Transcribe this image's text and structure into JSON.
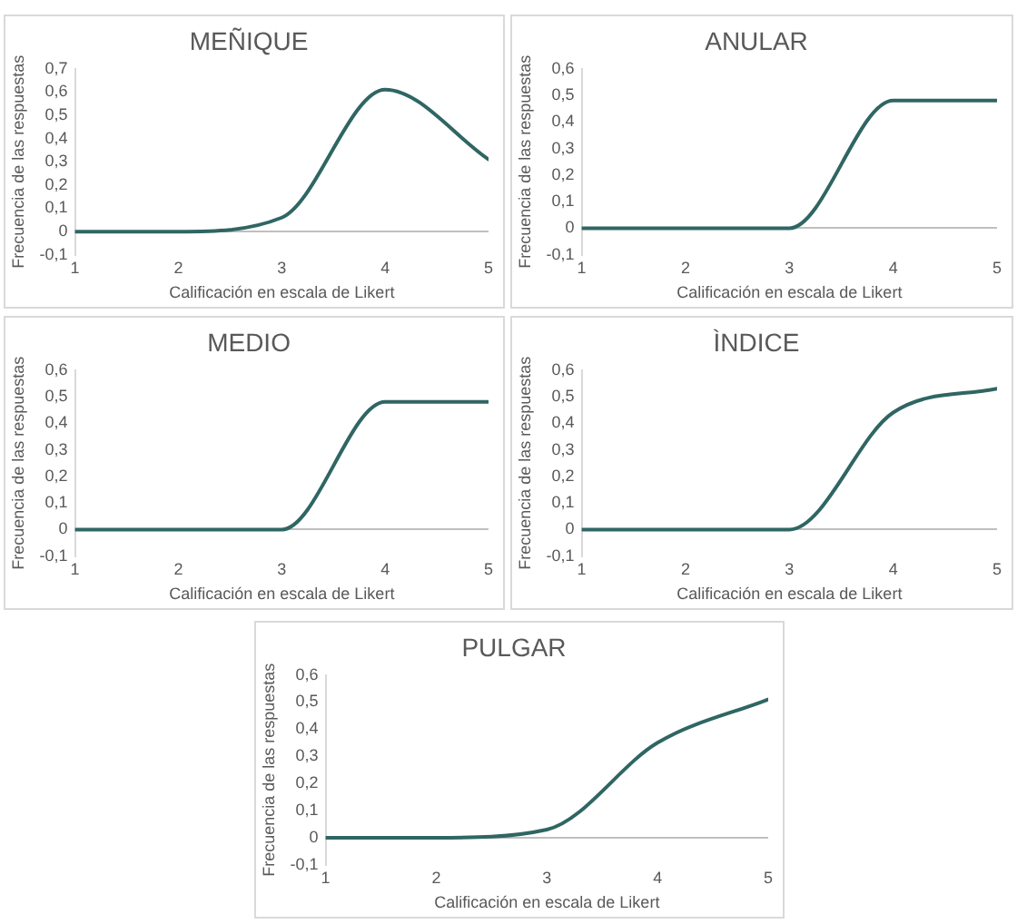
{
  "chart_data": [
    {
      "type": "line",
      "title": "MEÑIQUE",
      "xlabel": "Calificación en escala de Likert",
      "ylabel": "Frecuencia de las respuestas",
      "x": [
        1,
        2,
        3,
        4,
        5
      ],
      "xlim": [
        1,
        5
      ],
      "xticks": [
        1,
        2,
        3,
        4,
        5
      ],
      "ylim": [
        -0.1,
        0.7
      ],
      "yticks": [
        {
          "value": -0.1,
          "label": "-0,1"
        },
        {
          "value": 0,
          "label": "0"
        },
        {
          "value": 0.1,
          "label": "0,1"
        },
        {
          "value": 0.2,
          "label": "0,2"
        },
        {
          "value": 0.3,
          "label": "0,3"
        },
        {
          "value": 0.4,
          "label": "0,4"
        },
        {
          "value": 0.5,
          "label": "0,5"
        },
        {
          "value": 0.6,
          "label": "0,6"
        },
        {
          "value": 0.7,
          "label": "0,7"
        }
      ],
      "grid": false,
      "legend": false,
      "marker": "none",
      "series": [
        {
          "color": "#2f6663",
          "values": [
            0,
            0,
            0.06,
            0.61,
            0.31
          ]
        }
      ]
    },
    {
      "type": "line",
      "title": "ANULAR",
      "xlabel": "Calificación en escala de Likert",
      "ylabel": "Frecuencia de las respuestas",
      "x": [
        1,
        2,
        3,
        4,
        5
      ],
      "xlim": [
        1,
        5
      ],
      "xticks": [
        1,
        2,
        3,
        4,
        5
      ],
      "ylim": [
        -0.1,
        0.6
      ],
      "yticks": [
        {
          "value": -0.1,
          "label": "-0,1"
        },
        {
          "value": 0,
          "label": "0"
        },
        {
          "value": 0.1,
          "label": "0,1"
        },
        {
          "value": 0.2,
          "label": "0,2"
        },
        {
          "value": 0.3,
          "label": "0,3"
        },
        {
          "value": 0.4,
          "label": "0,4"
        },
        {
          "value": 0.5,
          "label": "0,5"
        },
        {
          "value": 0.6,
          "label": "0,6"
        }
      ],
      "grid": false,
      "legend": false,
      "marker": "none",
      "series": [
        {
          "color": "#2f6663",
          "values": [
            0,
            0,
            0,
            0.48,
            0.48
          ]
        }
      ]
    },
    {
      "type": "line",
      "title": "MEDIO",
      "xlabel": "Calificación en escala de Likert",
      "ylabel": "Frecuencia de las respuestas",
      "x": [
        1,
        2,
        3,
        4,
        5
      ],
      "xlim": [
        1,
        5
      ],
      "xticks": [
        1,
        2,
        3,
        4,
        5
      ],
      "ylim": [
        -0.1,
        0.6
      ],
      "yticks": [
        {
          "value": -0.1,
          "label": "-0,1"
        },
        {
          "value": 0,
          "label": "0"
        },
        {
          "value": 0.1,
          "label": "0,1"
        },
        {
          "value": 0.2,
          "label": "0,2"
        },
        {
          "value": 0.3,
          "label": "0,3"
        },
        {
          "value": 0.4,
          "label": "0,4"
        },
        {
          "value": 0.5,
          "label": "0,5"
        },
        {
          "value": 0.6,
          "label": "0,6"
        }
      ],
      "grid": false,
      "legend": false,
      "marker": "none",
      "series": [
        {
          "color": "#2f6663",
          "values": [
            0,
            0,
            0,
            0.48,
            0.48
          ]
        }
      ]
    },
    {
      "type": "line",
      "title": "ÌNDICE",
      "xlabel": "Calificación en escala de Likert",
      "ylabel": "Frecuencia de las respuestas",
      "x": [
        1,
        2,
        3,
        4,
        5
      ],
      "xlim": [
        1,
        5
      ],
      "xticks": [
        1,
        2,
        3,
        4,
        5
      ],
      "ylim": [
        -0.1,
        0.6
      ],
      "yticks": [
        {
          "value": -0.1,
          "label": "-0,1"
        },
        {
          "value": 0,
          "label": "0"
        },
        {
          "value": 0.1,
          "label": "0,1"
        },
        {
          "value": 0.2,
          "label": "0,2"
        },
        {
          "value": 0.3,
          "label": "0,3"
        },
        {
          "value": 0.4,
          "label": "0,4"
        },
        {
          "value": 0.5,
          "label": "0,5"
        },
        {
          "value": 0.6,
          "label": "0,6"
        }
      ],
      "grid": false,
      "legend": false,
      "marker": "none",
      "series": [
        {
          "color": "#2f6663",
          "values": [
            0,
            0,
            0,
            0.44,
            0.53
          ]
        }
      ]
    },
    {
      "type": "line",
      "title": "PULGAR",
      "xlabel": "Calificación en escala de Likert",
      "ylabel": "Frecuencia de las respuestas",
      "x": [
        1,
        2,
        3,
        4,
        5
      ],
      "xlim": [
        1,
        5
      ],
      "xticks": [
        1,
        2,
        3,
        4,
        5
      ],
      "ylim": [
        -0.1,
        0.6
      ],
      "yticks": [
        {
          "value": -0.1,
          "label": "-0,1"
        },
        {
          "value": 0,
          "label": "0"
        },
        {
          "value": 0.1,
          "label": "0,1"
        },
        {
          "value": 0.2,
          "label": "0,2"
        },
        {
          "value": 0.3,
          "label": "0,3"
        },
        {
          "value": 0.4,
          "label": "0,4"
        },
        {
          "value": 0.5,
          "label": "0,5"
        },
        {
          "value": 0.6,
          "label": "0,6"
        }
      ],
      "grid": false,
      "legend": false,
      "marker": "none",
      "series": [
        {
          "color": "#2f6663",
          "values": [
            0,
            0,
            0.03,
            0.35,
            0.51
          ]
        }
      ]
    }
  ]
}
